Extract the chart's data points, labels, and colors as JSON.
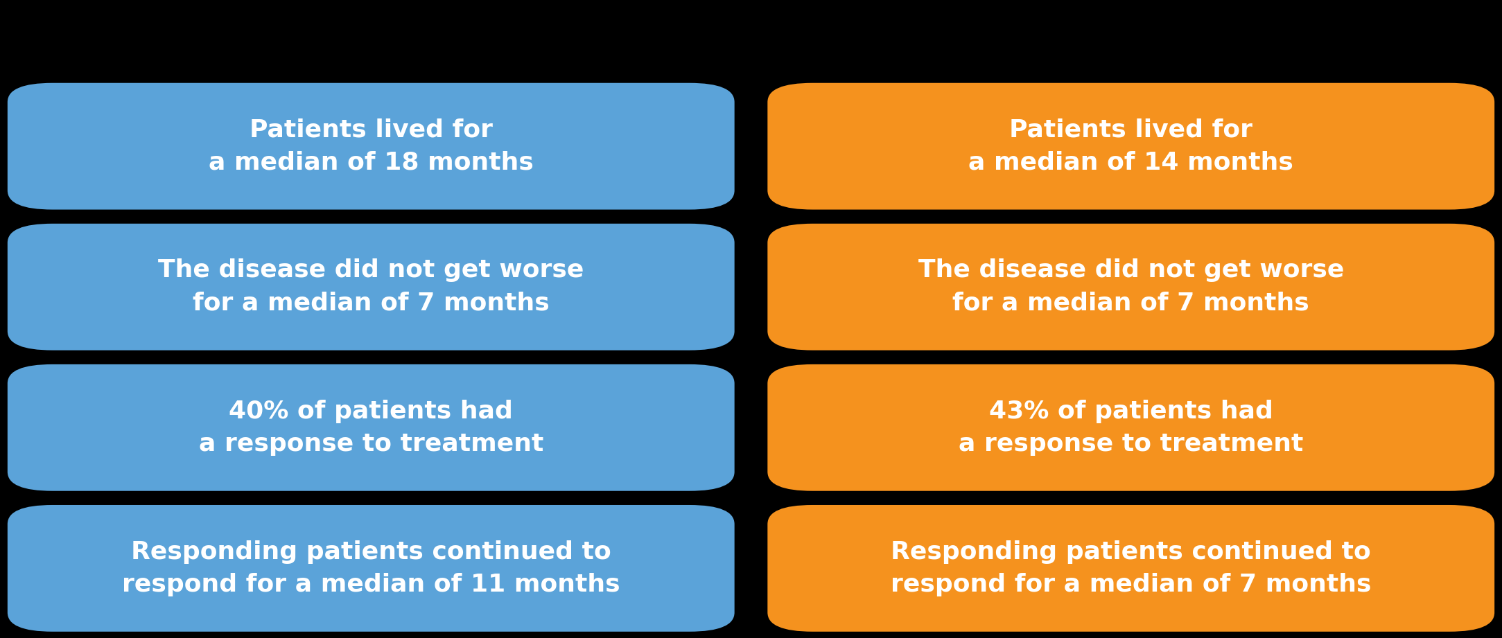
{
  "background_color": "#000000",
  "box_color_left": "#5BA3D9",
  "box_color_right": "#F5921E",
  "text_color": "#FFFFFF",
  "rows": [
    {
      "left": "Patients lived for\na median of 18 months",
      "right": "Patients lived for\na median of 14 months"
    },
    {
      "left": "The disease did not get worse\nfor a median of 7 months",
      "right": "The disease did not get worse\nfor a median of 7 months"
    },
    {
      "left": "40% of patients had\na response to treatment",
      "right": "43% of patients had\na response to treatment"
    },
    {
      "left": "Responding patients continued to\nrespond for a median of 11 months",
      "right": "Responding patients continued to\nrespond for a median of 7 months"
    }
  ],
  "font_size": 26,
  "figsize": [
    21.67,
    9.21
  ],
  "dpi": 100
}
